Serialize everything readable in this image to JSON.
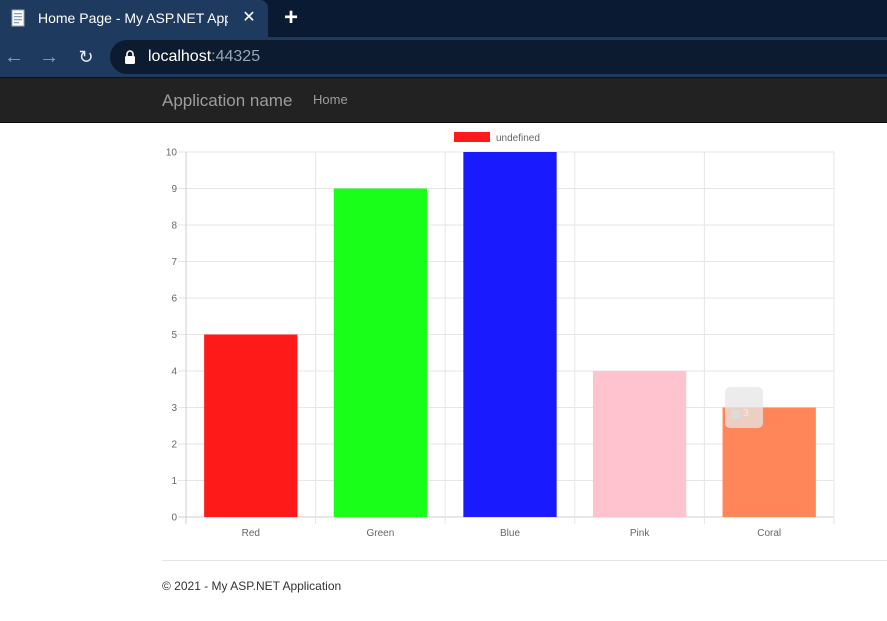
{
  "browser": {
    "tab_title": "Home Page - My ASP.NET Applic",
    "url_host": "localhost",
    "url_port": ":44325"
  },
  "navbar": {
    "brand": "Application name",
    "links": [
      "Home"
    ]
  },
  "chart_data": {
    "type": "bar",
    "categories": [
      "Red",
      "Green",
      "Blue",
      "Pink",
      "Coral"
    ],
    "values": [
      5,
      9,
      10,
      4,
      3
    ],
    "colors": [
      "#ff1a1a",
      "#19ff19",
      "#1a1aff",
      "#ffc3cf",
      "#ff8659"
    ],
    "series": [
      {
        "name": "undefined",
        "values": [
          5,
          9,
          10,
          4,
          3
        ]
      }
    ],
    "legend_color": "#ff1a1a",
    "legend_position": "top-center",
    "title": "",
    "xlabel": "",
    "ylabel": "",
    "ylim": [
      0,
      10
    ],
    "yticks": [
      "0",
      "1",
      "2",
      "3",
      "4",
      "5",
      "6",
      "7",
      "8",
      "9",
      "10"
    ],
    "grid": true
  },
  "tooltip": {
    "value": "3"
  },
  "footer": {
    "text": "© 2021 - My ASP.NET Application"
  }
}
